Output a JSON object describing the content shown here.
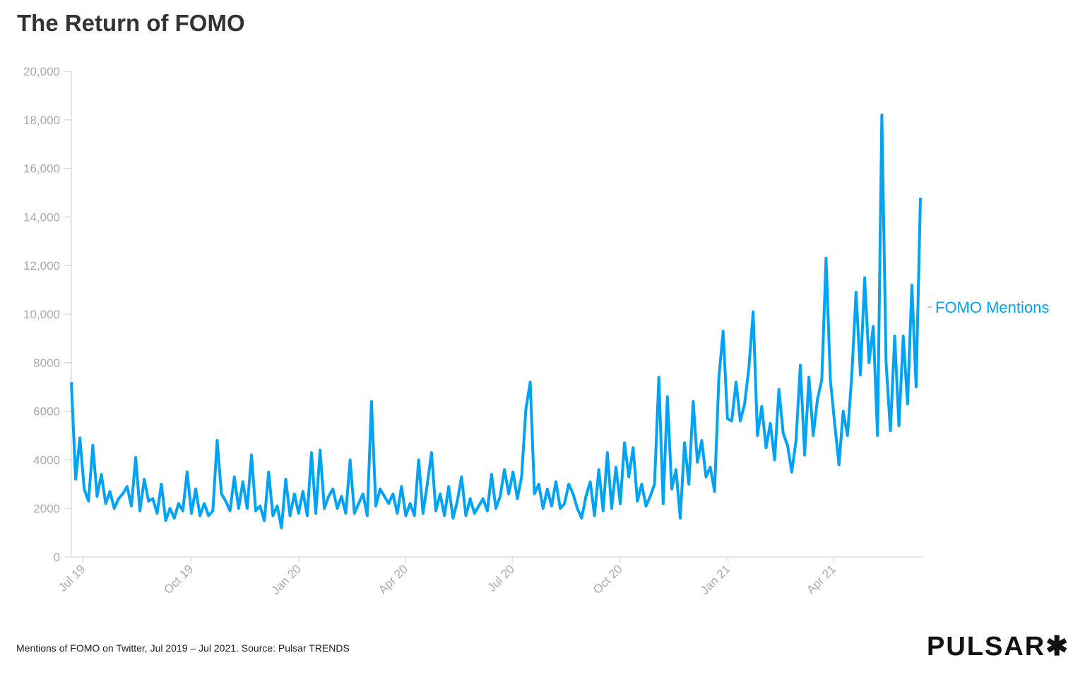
{
  "chart_data": {
    "type": "line",
    "title": "The Return of FOMO",
    "caption": "Mentions of FOMO on Twitter, Jul 2019 – Jul 2021. Source: Pulsar TRENDS",
    "brand": "PULSAR✱",
    "xlim": [
      "2019-06-21",
      "2021-06-14"
    ],
    "ylim": [
      0,
      20000
    ],
    "y_ticks": [
      0,
      2000,
      4000,
      6000,
      8000,
      10000,
      12000,
      14000,
      16000,
      18000,
      20000
    ],
    "y_tick_labels": [
      "0",
      "2000",
      "4000",
      "6000",
      "8000",
      "10,000",
      "12,000",
      "14,000",
      "16,000",
      "18,000",
      "20,000"
    ],
    "x_ticks": [
      "2019-07-01",
      "2019-10-01",
      "2020-01-01",
      "2020-04-01",
      "2020-07-01",
      "2020-10-01",
      "2021-01-01",
      "2021-04-01"
    ],
    "x_tick_labels": [
      "Jul 19",
      "Oct 19",
      "Jan 20",
      "Apr 20",
      "Jul 20",
      "Oct 20",
      "Jan 21",
      "Apr 21"
    ],
    "grid": false,
    "legend_position": "right-end-of-line",
    "series": [
      {
        "name": "FOMO Mentions",
        "color": "#00a3f5",
        "values": [
          7200,
          3200,
          4900,
          2800,
          2300,
          4600,
          2500,
          3400,
          2200,
          2700,
          2000,
          2400,
          2600,
          2900,
          2100,
          4100,
          1900,
          3200,
          2300,
          2400,
          1800,
          3000,
          1500,
          2000,
          1600,
          2200,
          1900,
          3500,
          1800,
          2800,
          1700,
          2200,
          1700,
          1900,
          4800,
          2600,
          2300,
          1900,
          3300,
          2000,
          3100,
          2000,
          4200,
          1900,
          2100,
          1500,
          3500,
          1700,
          2100,
          1200,
          3200,
          1700,
          2600,
          1800,
          2700,
          1700,
          4300,
          1800,
          4400,
          2000,
          2500,
          2800,
          2000,
          2500,
          1800,
          4000,
          1800,
          2200,
          2600,
          1700,
          6400,
          2100,
          2800,
          2500,
          2200,
          2600,
          1800,
          2900,
          1700,
          2200,
          1700,
          4000,
          1800,
          3000,
          4300,
          1900,
          2600,
          1700,
          2900,
          1600,
          2300,
          3300,
          1700,
          2400,
          1800,
          2100,
          2400,
          1900,
          3400,
          2000,
          2500,
          3600,
          2600,
          3500,
          2400,
          3300,
          6100,
          7200,
          2600,
          3000,
          2000,
          2800,
          2100,
          3100,
          2000,
          2200,
          3000,
          2600,
          2000,
          1600,
          2500,
          3100,
          1700,
          3600,
          1900,
          4300,
          2000,
          3700,
          2200,
          4700,
          3300,
          4500,
          2300,
          3000,
          2100,
          2500,
          3000,
          7400,
          2200,
          6600,
          2800,
          3600,
          1600,
          4700,
          3000,
          6400,
          3900,
          4800,
          3300,
          3700,
          2700,
          7400,
          9300,
          5700,
          5600,
          7200,
          5600,
          6300,
          7800,
          10100,
          5000,
          6200,
          4500,
          5500,
          4000,
          6900,
          5100,
          4600,
          3500,
          4800,
          7900,
          4200,
          7400,
          5000,
          6500,
          7300,
          12300,
          7300,
          5500,
          3800,
          6000,
          5000,
          7500,
          10900,
          7500,
          11500,
          8000,
          9500,
          5000,
          18200,
          8000,
          5200,
          9100,
          5400,
          9100,
          6300,
          11200,
          7000,
          14800
        ]
      }
    ]
  }
}
